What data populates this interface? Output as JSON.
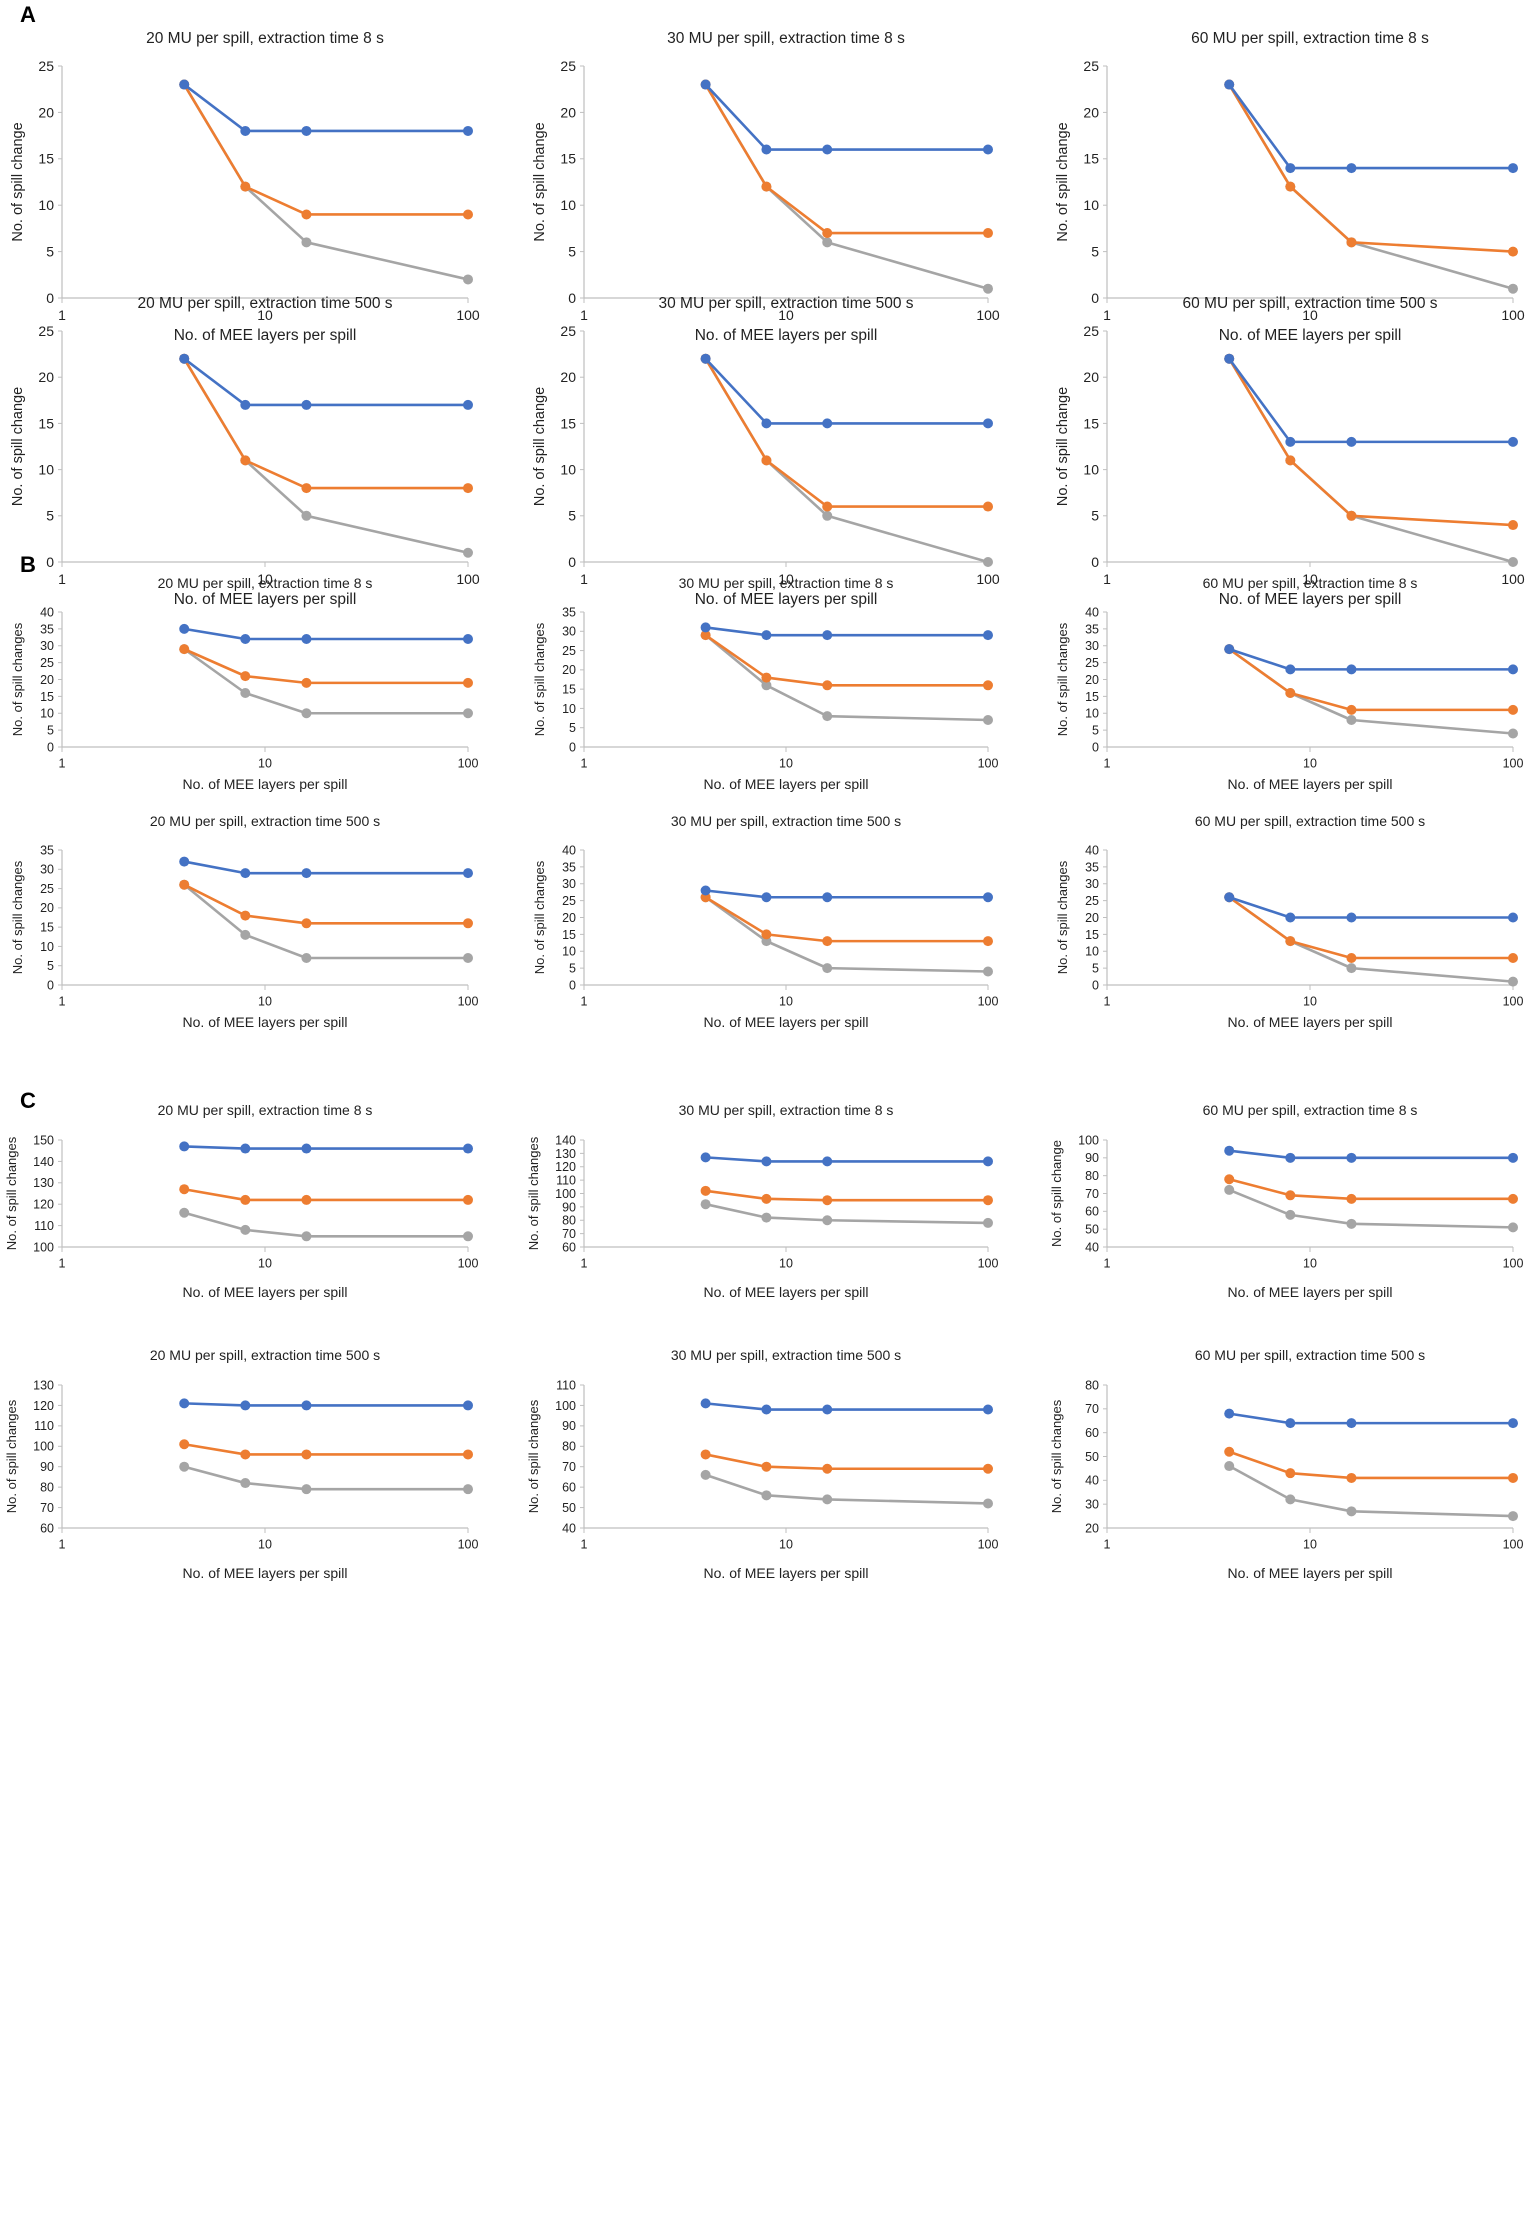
{
  "figure": {
    "colors": {
      "blue": "#4472C4",
      "orange": "#ED7D31",
      "gray": "#A5A5A5",
      "axis": "#BFBFBF",
      "text": "#333333"
    },
    "panels": [
      {
        "letter": "A"
      },
      {
        "letter": "B"
      },
      {
        "letter": "C"
      }
    ]
  },
  "chart_data": [
    {
      "panel": "A",
      "type": "line",
      "title": "20 MU per spill, extraction time 8 s",
      "xlabel": "No. of MEE layers per spill",
      "ylabel": "No. of spill change",
      "xscale": "log",
      "xticks": [
        "1",
        "10",
        "100"
      ],
      "ylim": [
        0,
        25
      ],
      "ystep": 5,
      "x": [
        4,
        8,
        16,
        100
      ],
      "series": [
        {
          "name": "blue",
          "values": [
            23,
            18,
            18,
            18
          ]
        },
        {
          "name": "orange",
          "values": [
            23,
            12,
            9,
            9
          ]
        },
        {
          "name": "gray",
          "values": [
            23,
            12,
            6,
            2
          ]
        }
      ]
    },
    {
      "panel": "A",
      "type": "line",
      "title": "30 MU per spill, extraction time 8 s",
      "xlabel": "No. of MEE layers per spill",
      "ylabel": "No. of spill change",
      "xscale": "log",
      "xticks": [
        "1",
        "10",
        "100"
      ],
      "ylim": [
        0,
        25
      ],
      "ystep": 5,
      "x": [
        4,
        8,
        16,
        100
      ],
      "series": [
        {
          "name": "blue",
          "values": [
            23,
            16,
            16,
            16
          ]
        },
        {
          "name": "orange",
          "values": [
            23,
            12,
            7,
            7
          ]
        },
        {
          "name": "gray",
          "values": [
            23,
            12,
            6,
            1
          ]
        }
      ]
    },
    {
      "panel": "A",
      "type": "line",
      "title": "60 MU per spill, extraction time 8 s",
      "xlabel": "No. of MEE layers per spill",
      "ylabel": "No. of spill change",
      "xscale": "log",
      "xticks": [
        "1",
        "10",
        "100"
      ],
      "ylim": [
        0,
        25
      ],
      "ystep": 5,
      "x": [
        4,
        8,
        16,
        100
      ],
      "series": [
        {
          "name": "blue",
          "values": [
            23,
            14,
            14,
            14
          ]
        },
        {
          "name": "orange",
          "values": [
            23,
            12,
            6,
            5
          ]
        },
        {
          "name": "gray",
          "values": [
            23,
            12,
            6,
            1
          ]
        }
      ]
    },
    {
      "panel": "A",
      "type": "line",
      "title": "20 MU per spill, extraction time 500 s",
      "xlabel": "No. of MEE layers per spill",
      "ylabel": "No. of spill change",
      "xscale": "log",
      "xticks": [
        "1",
        "10",
        "100"
      ],
      "ylim": [
        0,
        25
      ],
      "ystep": 5,
      "x": [
        4,
        8,
        16,
        100
      ],
      "series": [
        {
          "name": "blue",
          "values": [
            22,
            17,
            17,
            17
          ]
        },
        {
          "name": "orange",
          "values": [
            22,
            11,
            8,
            8
          ]
        },
        {
          "name": "gray",
          "values": [
            22,
            11,
            5,
            1
          ]
        }
      ]
    },
    {
      "panel": "A",
      "type": "line",
      "title": "30 MU per spill, extraction time 500 s",
      "xlabel": "No. of MEE layers per spill",
      "ylabel": "No. of spill change",
      "xscale": "log",
      "xticks": [
        "1",
        "10",
        "100"
      ],
      "ylim": [
        0,
        25
      ],
      "ystep": 5,
      "x": [
        4,
        8,
        16,
        100
      ],
      "series": [
        {
          "name": "blue",
          "values": [
            22,
            15,
            15,
            15
          ]
        },
        {
          "name": "orange",
          "values": [
            22,
            11,
            6,
            6
          ]
        },
        {
          "name": "gray",
          "values": [
            22,
            11,
            5,
            0
          ]
        }
      ]
    },
    {
      "panel": "A",
      "type": "line",
      "title": "60 MU per spill, extraction time 500 s",
      "xlabel": "No. of MEE layers per spill",
      "ylabel": "No. of spill change",
      "xscale": "log",
      "xticks": [
        "1",
        "10",
        "100"
      ],
      "ylim": [
        0,
        25
      ],
      "ystep": 5,
      "x": [
        4,
        8,
        16,
        100
      ],
      "series": [
        {
          "name": "blue",
          "values": [
            22,
            13,
            13,
            13
          ]
        },
        {
          "name": "orange",
          "values": [
            22,
            11,
            5,
            4
          ]
        },
        {
          "name": "gray",
          "values": [
            22,
            11,
            5,
            0
          ]
        }
      ]
    },
    {
      "panel": "B",
      "type": "line",
      "title": "20 MU per spill, extraction time 8 s",
      "xlabel": "No. of MEE layers per spill",
      "ylabel": "No. of spill changes",
      "xscale": "log",
      "xticks": [
        "1",
        "10",
        "100"
      ],
      "ylim": [
        0,
        40
      ],
      "ystep": 5,
      "x": [
        4,
        8,
        16,
        100
      ],
      "series": [
        {
          "name": "blue",
          "values": [
            35,
            32,
            32,
            32
          ]
        },
        {
          "name": "orange",
          "values": [
            29,
            21,
            19,
            19
          ]
        },
        {
          "name": "gray",
          "values": [
            29,
            16,
            10,
            10
          ]
        }
      ]
    },
    {
      "panel": "B",
      "type": "line",
      "title": "30 MU per spill, extraction time 8 s",
      "xlabel": "No. of MEE layers per spill",
      "ylabel": "No. of spill changes",
      "xscale": "log",
      "xticks": [
        "1",
        "10",
        "100"
      ],
      "ylim": [
        0,
        35
      ],
      "ystep": 5,
      "x": [
        4,
        8,
        16,
        100
      ],
      "series": [
        {
          "name": "blue",
          "values": [
            31,
            29,
            29,
            29
          ]
        },
        {
          "name": "orange",
          "values": [
            29,
            18,
            16,
            16
          ]
        },
        {
          "name": "gray",
          "values": [
            29,
            16,
            8,
            7
          ]
        }
      ]
    },
    {
      "panel": "B",
      "type": "line",
      "title": "60 MU per spill, extraction time 8 s",
      "xlabel": "No. of MEE layers per spill",
      "ylabel": "No. of spill changes",
      "xscale": "log",
      "xticks": [
        "1",
        "10",
        "100"
      ],
      "ylim": [
        0,
        40
      ],
      "ystep": 5,
      "x": [
        4,
        8,
        16,
        100
      ],
      "series": [
        {
          "name": "blue",
          "values": [
            29,
            23,
            23,
            23
          ]
        },
        {
          "name": "orange",
          "values": [
            29,
            16,
            11,
            11
          ]
        },
        {
          "name": "gray",
          "values": [
            29,
            16,
            8,
            4
          ]
        }
      ]
    },
    {
      "panel": "B",
      "type": "line",
      "title": "20 MU per spill, extraction time 500 s",
      "xlabel": "No. of MEE layers per spill",
      "ylabel": "No. of spill changes",
      "xscale": "log",
      "xticks": [
        "1",
        "10",
        "100"
      ],
      "ylim": [
        0,
        35
      ],
      "ystep": 5,
      "x": [
        4,
        8,
        16,
        100
      ],
      "series": [
        {
          "name": "blue",
          "values": [
            32,
            29,
            29,
            29
          ]
        },
        {
          "name": "orange",
          "values": [
            26,
            18,
            16,
            16
          ]
        },
        {
          "name": "gray",
          "values": [
            26,
            13,
            7,
            7
          ]
        }
      ]
    },
    {
      "panel": "B",
      "type": "line",
      "title": "30 MU per spill, extraction time 500 s",
      "xlabel": "No. of MEE layers per spill",
      "ylabel": "No. of spill changes",
      "xscale": "log",
      "xticks": [
        "1",
        "10",
        "100"
      ],
      "ylim": [
        0,
        40
      ],
      "ystep": 5,
      "x": [
        4,
        8,
        16,
        100
      ],
      "series": [
        {
          "name": "blue",
          "values": [
            28,
            26,
            26,
            26
          ]
        },
        {
          "name": "orange",
          "values": [
            26,
            15,
            13,
            13
          ]
        },
        {
          "name": "gray",
          "values": [
            26,
            13,
            5,
            4
          ]
        }
      ]
    },
    {
      "panel": "B",
      "type": "line",
      "title": "60 MU per spill, extraction time 500 s",
      "xlabel": "No. of MEE layers per spill",
      "ylabel": "No. of spill changes",
      "xscale": "log",
      "xticks": [
        "1",
        "10",
        "100"
      ],
      "ylim": [
        0,
        40
      ],
      "ystep": 5,
      "x": [
        4,
        8,
        16,
        100
      ],
      "series": [
        {
          "name": "blue",
          "values": [
            26,
            20,
            20,
            20
          ]
        },
        {
          "name": "orange",
          "values": [
            26,
            13,
            8,
            8
          ]
        },
        {
          "name": "gray",
          "values": [
            26,
            13,
            5,
            1
          ]
        }
      ]
    },
    {
      "panel": "C",
      "type": "line",
      "title": "20 MU per spill, extraction time 8 s",
      "xlabel": "No. of MEE layers per spill",
      "ylabel": "No. of spill changes",
      "xscale": "log",
      "xticks": [
        "1",
        "10",
        "100"
      ],
      "ylim": [
        100,
        150
      ],
      "ystep": 10,
      "x": [
        4,
        8,
        16,
        100
      ],
      "series": [
        {
          "name": "blue",
          "values": [
            147,
            146,
            146,
            146
          ]
        },
        {
          "name": "orange",
          "values": [
            127,
            122,
            122,
            122
          ]
        },
        {
          "name": "gray",
          "values": [
            116,
            108,
            105,
            105
          ]
        }
      ]
    },
    {
      "panel": "C",
      "type": "line",
      "title": "30 MU per spill, extraction time 8 s",
      "xlabel": "No. of MEE layers per spill",
      "ylabel": "No. of spill changes",
      "xscale": "log",
      "xticks": [
        "1",
        "10",
        "100"
      ],
      "ylim": [
        60,
        140
      ],
      "ystep": 10,
      "x": [
        4,
        8,
        16,
        100
      ],
      "series": [
        {
          "name": "blue",
          "values": [
            127,
            124,
            124,
            124
          ]
        },
        {
          "name": "orange",
          "values": [
            102,
            96,
            95,
            95
          ]
        },
        {
          "name": "gray",
          "values": [
            92,
            82,
            80,
            78
          ]
        }
      ]
    },
    {
      "panel": "C",
      "type": "line",
      "title": "60 MU per spill, extraction time 8 s",
      "xlabel": "No. of MEE layers per spill",
      "ylabel": "No. of spill change",
      "xscale": "log",
      "xticks": [
        "1",
        "10",
        "100"
      ],
      "ylim": [
        40,
        100
      ],
      "ystep": 10,
      "x": [
        4,
        8,
        16,
        100
      ],
      "series": [
        {
          "name": "blue",
          "values": [
            94,
            90,
            90,
            90
          ]
        },
        {
          "name": "orange",
          "values": [
            78,
            69,
            67,
            67
          ]
        },
        {
          "name": "gray",
          "values": [
            72,
            58,
            53,
            51
          ]
        }
      ]
    },
    {
      "panel": "C",
      "type": "line",
      "title": "20 MU per spill, extraction time 500 s",
      "xlabel": "No. of MEE layers per spill",
      "ylabel": "No. of spill changes",
      "xscale": "log",
      "xticks": [
        "1",
        "10",
        "100"
      ],
      "ylim": [
        60,
        130
      ],
      "ystep": 10,
      "x": [
        4,
        8,
        16,
        100
      ],
      "series": [
        {
          "name": "blue",
          "values": [
            121,
            120,
            120,
            120
          ]
        },
        {
          "name": "orange",
          "values": [
            101,
            96,
            96,
            96
          ]
        },
        {
          "name": "gray",
          "values": [
            90,
            82,
            79,
            79
          ]
        }
      ]
    },
    {
      "panel": "C",
      "type": "line",
      "title": "30 MU per spill, extraction time 500 s",
      "xlabel": "No. of MEE layers per spill",
      "ylabel": "No. of spill changes",
      "xscale": "log",
      "xticks": [
        "1",
        "10",
        "100"
      ],
      "ylim": [
        40,
        110
      ],
      "ystep": 10,
      "x": [
        4,
        8,
        16,
        100
      ],
      "series": [
        {
          "name": "blue",
          "values": [
            101,
            98,
            98,
            98
          ]
        },
        {
          "name": "orange",
          "values": [
            76,
            70,
            69,
            69
          ]
        },
        {
          "name": "gray",
          "values": [
            66,
            56,
            54,
            52
          ]
        }
      ]
    },
    {
      "panel": "C",
      "type": "line",
      "title": "60 MU per spill, extraction time 500 s",
      "xlabel": "No. of MEE layers per spill",
      "ylabel": "No. of spill changes",
      "xscale": "log",
      "xticks": [
        "1",
        "10",
        "100"
      ],
      "ylim": [
        20,
        80
      ],
      "ystep": 10,
      "x": [
        4,
        8,
        16,
        100
      ],
      "series": [
        {
          "name": "blue",
          "values": [
            68,
            64,
            64,
            64
          ]
        },
        {
          "name": "orange",
          "values": [
            52,
            43,
            41,
            41
          ]
        },
        {
          "name": "gray",
          "values": [
            46,
            32,
            27,
            25
          ]
        }
      ]
    }
  ]
}
